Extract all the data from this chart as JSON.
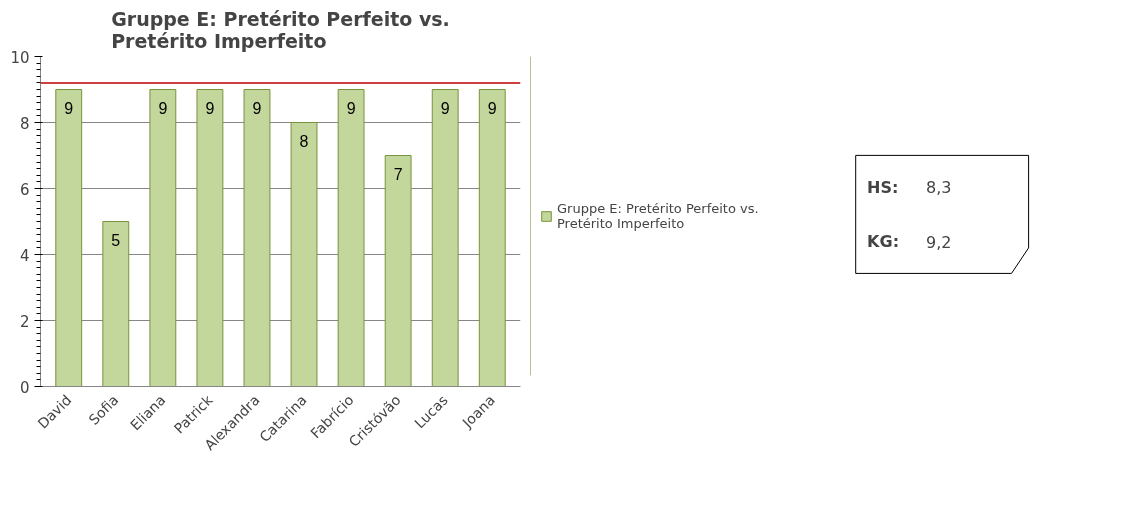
{
  "chart_data": {
    "type": "bar",
    "title": "Gruppe E: Pretérito Perfeito vs. Pretérito Imperfeito",
    "categories": [
      "David",
      "Sofia",
      "Eliana",
      "Patrick",
      "Alexandra",
      "Catarina",
      "Fabrício",
      "Cristóvão",
      "Lucas",
      "Joana"
    ],
    "series": [
      {
        "name": "Gruppe E: Pretérito Perfeito vs. Pretérito Imperfeito",
        "color": "#c3d69b",
        "values": [
          9,
          5,
          9,
          9,
          9,
          8,
          9,
          7,
          9,
          9
        ]
      }
    ],
    "ylim": [
      0,
      10
    ],
    "yticks": [
      0,
      2,
      4,
      6,
      8,
      10
    ],
    "grid": "y",
    "legend": "right",
    "data_labels": true,
    "ref_lines": [
      {
        "axis": "y",
        "value": 9.2,
        "color": "#c00000"
      }
    ],
    "annotations": [
      "HS: 8,3",
      "KG: 9,2"
    ]
  }
}
